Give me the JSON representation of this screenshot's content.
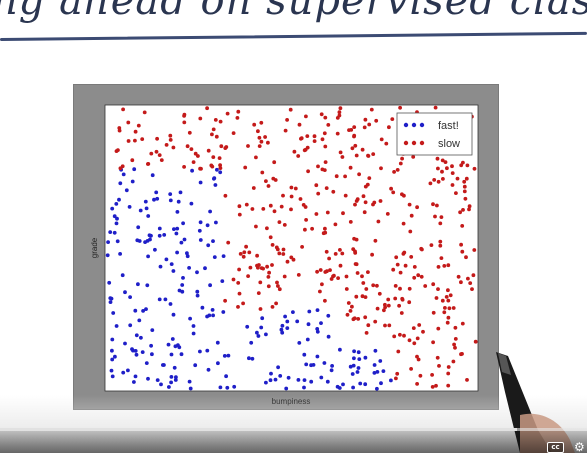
{
  "header": {
    "handwritten_title": "ng ahead on supervised classification"
  },
  "chart_data": {
    "type": "scatter",
    "title": "",
    "xlabel": "bumpiness",
    "ylabel": "grade",
    "xlim": [
      0,
      1
    ],
    "ylim": [
      0,
      1
    ],
    "grid": false,
    "legend": "top-right",
    "series": [
      {
        "name": "fast!",
        "color": "#1f1fc8"
      },
      {
        "name": "slow",
        "color": "#c41a1a"
      }
    ],
    "points_per_series_estimate": [
      260,
      440
    ],
    "note_region": "fast! points concentrate at low bumpiness / low grade; slow points elsewhere"
  },
  "video_player": {
    "progress_fraction": 0.88,
    "cc_label": "cc",
    "settings_icon": "gear-icon"
  },
  "colors": {
    "plot_frame": "#8c8c8c",
    "fast": "#1f1fc8",
    "slow": "#c41a1a",
    "ink": "#2a3550"
  }
}
